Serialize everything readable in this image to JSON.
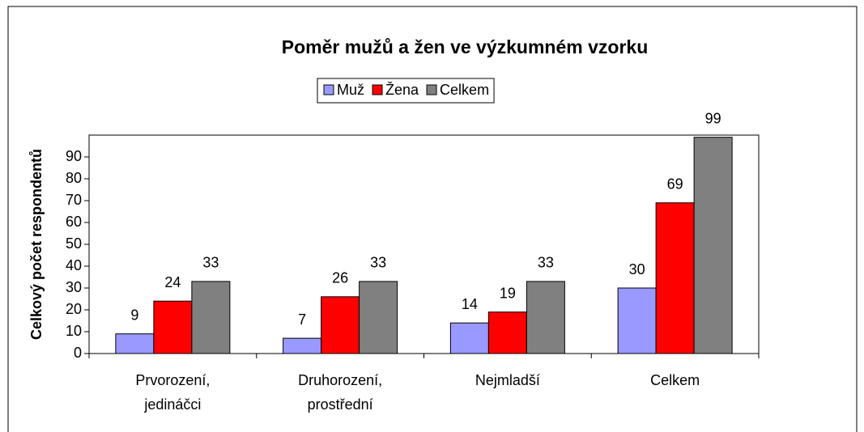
{
  "chart_data": {
    "type": "bar",
    "title": "Poměr mužů a žen ve výzkumném vzorku",
    "y_label": "Celkový počet respondentů",
    "categories": [
      [
        "Prvorození,",
        "jedináčci"
      ],
      [
        "Druhorození,",
        "prostřední"
      ],
      [
        "Nejmladší"
      ],
      [
        "Celkem"
      ]
    ],
    "series": [
      {
        "name": "Muž",
        "color": "#9999ff",
        "values": [
          9,
          7,
          14,
          30
        ]
      },
      {
        "name": "Žena",
        "color": "#ff0000",
        "values": [
          24,
          26,
          19,
          69
        ]
      },
      {
        "name": "Celkem",
        "color": "#808080",
        "values": [
          33,
          33,
          33,
          99
        ]
      }
    ],
    "ylim": [
      0,
      100
    ],
    "yticks": [
      0,
      10,
      20,
      30,
      40,
      50,
      60,
      70,
      80,
      90
    ],
    "legend": "top"
  }
}
